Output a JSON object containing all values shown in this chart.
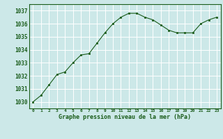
{
  "x": [
    0,
    1,
    2,
    3,
    4,
    5,
    6,
    7,
    8,
    9,
    10,
    11,
    12,
    13,
    14,
    15,
    16,
    17,
    18,
    19,
    20,
    21,
    22,
    23
  ],
  "y": [
    1030.0,
    1030.5,
    1031.3,
    1032.1,
    1032.3,
    1033.0,
    1033.6,
    1033.7,
    1034.5,
    1035.3,
    1036.0,
    1036.5,
    1036.8,
    1036.8,
    1036.5,
    1036.3,
    1035.9,
    1035.5,
    1035.3,
    1035.3,
    1035.3,
    1036.0,
    1036.3,
    1036.5
  ],
  "ylim": [
    1029.5,
    1037.5
  ],
  "xlim": [
    -0.5,
    23.5
  ],
  "yticks": [
    1030,
    1031,
    1032,
    1033,
    1034,
    1035,
    1036,
    1037
  ],
  "xticks": [
    0,
    1,
    2,
    3,
    4,
    5,
    6,
    7,
    8,
    9,
    10,
    11,
    12,
    13,
    14,
    15,
    16,
    17,
    18,
    19,
    20,
    21,
    22,
    23
  ],
  "line_color": "#1a5c1a",
  "marker_color": "#1a5c1a",
  "bg_color": "#cce8e8",
  "grid_color": "#ffffff",
  "xlabel": "Graphe pression niveau de la mer (hPa)",
  "xlabel_color": "#1a5c1a",
  "tick_color": "#1a5c1a",
  "border_color": "#1a5c1a"
}
